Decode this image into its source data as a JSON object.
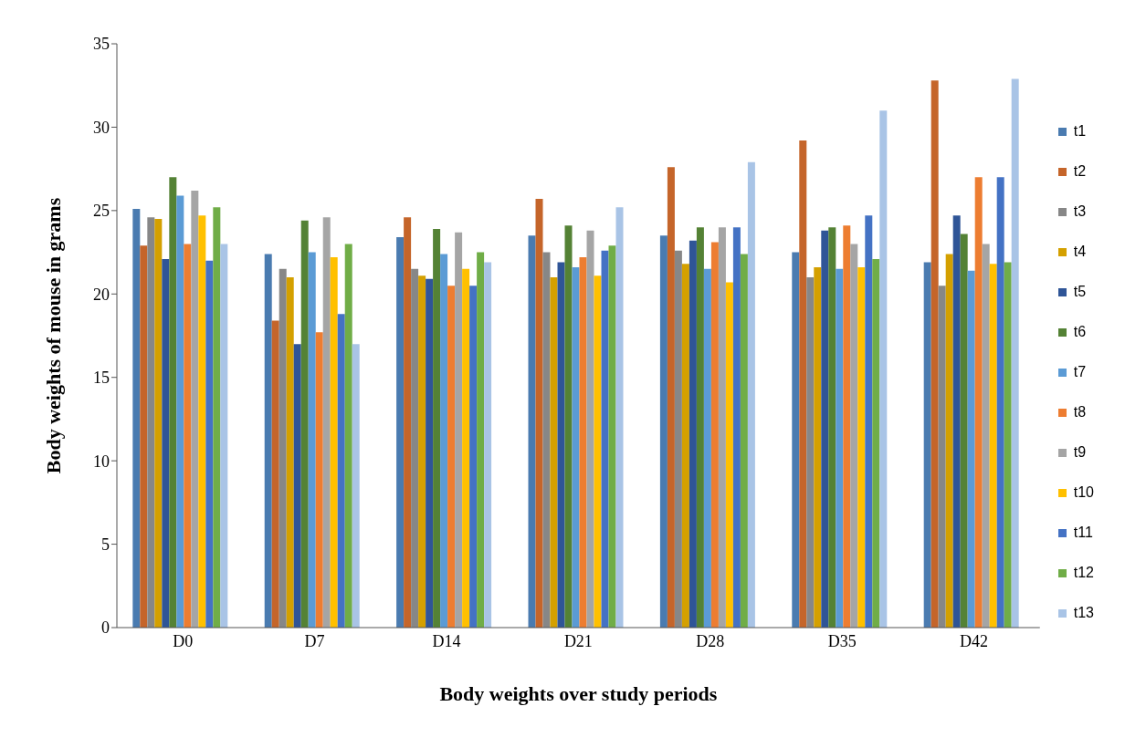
{
  "chart_data": {
    "type": "bar",
    "xlabel": "Body weights over study periods",
    "ylabel": "Body weights of mouse in grams",
    "categories": [
      "D0",
      "D7",
      "D14",
      "D21",
      "D28",
      "D35",
      "D42"
    ],
    "ylim": [
      0,
      35
    ],
    "yticks": [
      0,
      5,
      10,
      15,
      20,
      25,
      30,
      35
    ],
    "grid": false,
    "legend": "right",
    "series": [
      {
        "name": "t1",
        "color": "#4a7bb0",
        "values": [
          25.1,
          22.4,
          23.4,
          23.5,
          23.5,
          22.5,
          21.9
        ]
      },
      {
        "name": "t2",
        "color": "#c5652a",
        "values": [
          22.9,
          18.4,
          24.6,
          25.7,
          27.6,
          29.2,
          32.8
        ]
      },
      {
        "name": "t3",
        "color": "#878787",
        "values": [
          24.6,
          21.5,
          21.5,
          22.5,
          22.6,
          21.0,
          20.5
        ]
      },
      {
        "name": "t4",
        "color": "#d4a000",
        "values": [
          24.5,
          21.0,
          21.1,
          21.0,
          21.8,
          21.6,
          22.4
        ]
      },
      {
        "name": "t5",
        "color": "#2f5597",
        "values": [
          22.1,
          17.0,
          20.9,
          21.9,
          23.2,
          23.8,
          24.7
        ]
      },
      {
        "name": "t6",
        "color": "#548235",
        "values": [
          27.0,
          24.4,
          23.9,
          24.1,
          24.0,
          24.0,
          23.6
        ]
      },
      {
        "name": "t7",
        "color": "#5b9bd5",
        "values": [
          25.9,
          22.5,
          22.4,
          21.6,
          21.5,
          21.5,
          21.4
        ]
      },
      {
        "name": "t8",
        "color": "#ed7d31",
        "values": [
          23.0,
          17.7,
          20.5,
          22.2,
          23.1,
          24.1,
          27.0
        ]
      },
      {
        "name": "t9",
        "color": "#a5a5a5",
        "values": [
          26.2,
          24.6,
          23.7,
          23.8,
          24.0,
          23.0,
          23.0
        ]
      },
      {
        "name": "t10",
        "color": "#ffc000",
        "values": [
          24.7,
          22.2,
          21.5,
          21.1,
          20.7,
          21.6,
          21.8
        ]
      },
      {
        "name": "t11",
        "color": "#4472c4",
        "values": [
          22.0,
          18.8,
          20.5,
          22.6,
          24.0,
          24.7,
          27.0
        ]
      },
      {
        "name": "t12",
        "color": "#70ad47",
        "values": [
          25.2,
          23.0,
          22.5,
          22.9,
          22.4,
          22.1,
          21.9
        ]
      },
      {
        "name": "t13",
        "color": "#a9c4e6",
        "values": [
          23.0,
          17.0,
          21.9,
          25.2,
          27.9,
          31.0,
          32.9
        ]
      }
    ]
  }
}
